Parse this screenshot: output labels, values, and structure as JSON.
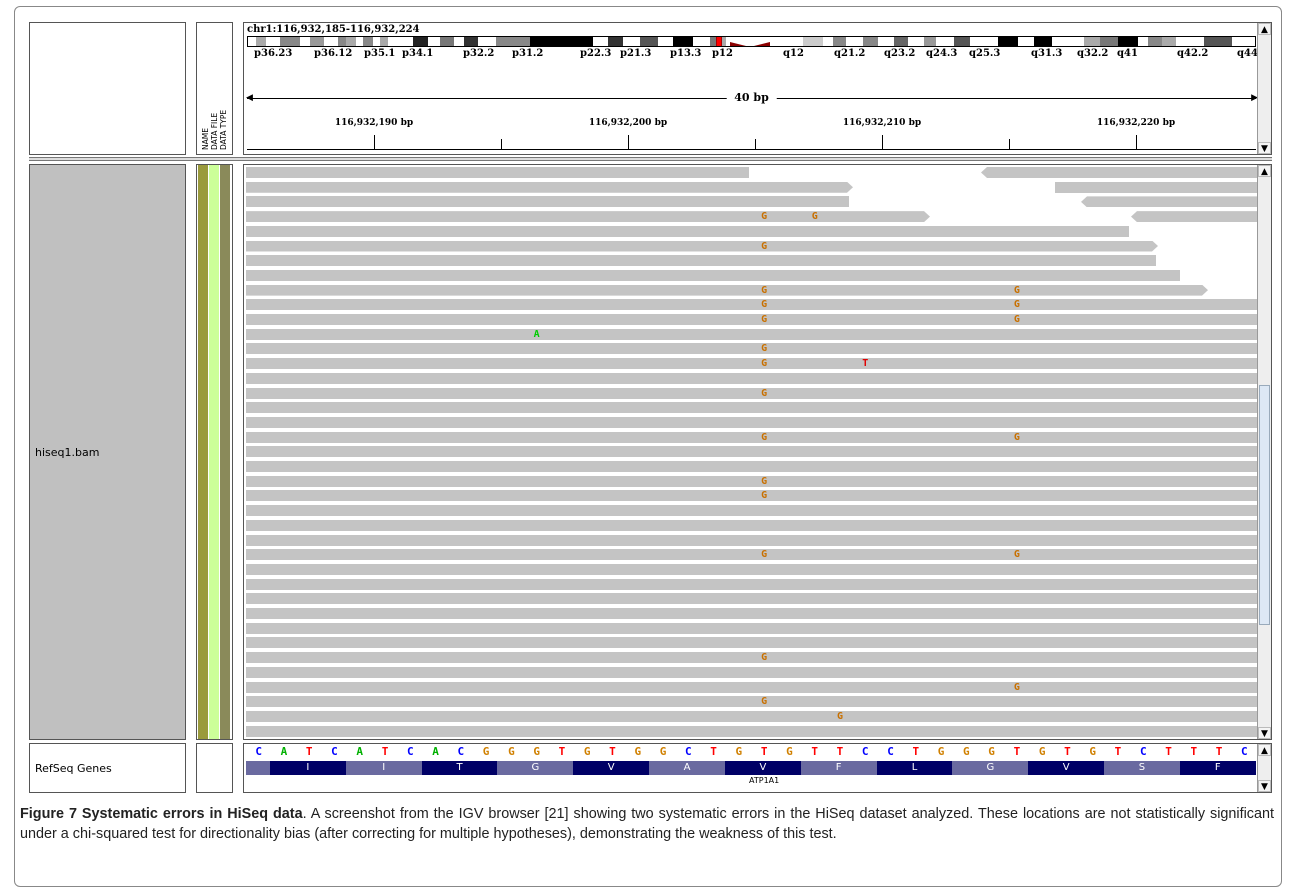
{
  "igv": {
    "locus": "chr1:116,932,185-116,932,224",
    "ideogram_bands": [
      "p36.23",
      "p36.12",
      "p35.1",
      "p34.1",
      "p32.2",
      "p31.2",
      "p22.3",
      "p21.3",
      "p13.3",
      "p12",
      "q12",
      "q21.2",
      "q23.2",
      "q24.3",
      "q25.3",
      "q31.3",
      "q32.2",
      "q41",
      "q42.2",
      "q44"
    ],
    "span_label": "40 bp",
    "ruler_ticks": [
      "116,932,190 bp",
      "116,932,200 bp",
      "116,932,210 bp",
      "116,932,220 bp"
    ],
    "attribute_headers": [
      "NAME",
      "DATA FILE",
      "DATA TYPE"
    ],
    "track_name": "hiseq1.bam",
    "refseq_track_name": "RefSeq Genes",
    "reference_sequence": [
      "C",
      "A",
      "T",
      "C",
      "A",
      "T",
      "C",
      "A",
      "C",
      "G",
      "G",
      "G",
      "T",
      "G",
      "T",
      "G",
      "G",
      "C",
      "T",
      "G",
      "T",
      "G",
      "T",
      "T",
      "C",
      "C",
      "T",
      "G",
      "G",
      "G",
      "T",
      "G",
      "T",
      "G",
      "T",
      "C",
      "T",
      "T",
      "T",
      "C"
    ],
    "base_colors": {
      "A": "#00b000",
      "C": "#0000ff",
      "G": "#d08000",
      "T": "#ff0000"
    },
    "amino_acids": [
      "I",
      "I",
      "T",
      "G",
      "V",
      "A",
      "V",
      "F",
      "L",
      "G",
      "V",
      "S",
      "F"
    ],
    "gene_name": "ATP1A1",
    "mismatch_colors": {
      "G": "#c87000",
      "A": "#00cc00",
      "T": "#e00000"
    },
    "mismatches": [
      {
        "row": 3,
        "pos": 20,
        "base": "G"
      },
      {
        "row": 3,
        "pos": 22,
        "base": "G"
      },
      {
        "row": 5,
        "pos": 20,
        "base": "G"
      },
      {
        "row": 8,
        "pos": 20,
        "base": "G"
      },
      {
        "row": 8,
        "pos": 30,
        "base": "G"
      },
      {
        "row": 9,
        "pos": 20,
        "base": "G"
      },
      {
        "row": 9,
        "pos": 30,
        "base": "G"
      },
      {
        "row": 10,
        "pos": 20,
        "base": "G"
      },
      {
        "row": 10,
        "pos": 30,
        "base": "G"
      },
      {
        "row": 11,
        "pos": 11,
        "base": "A"
      },
      {
        "row": 12,
        "pos": 20,
        "base": "G"
      },
      {
        "row": 13,
        "pos": 20,
        "base": "G"
      },
      {
        "row": 13,
        "pos": 24,
        "base": "T"
      },
      {
        "row": 15,
        "pos": 20,
        "base": "G"
      },
      {
        "row": 18,
        "pos": 20,
        "base": "G"
      },
      {
        "row": 18,
        "pos": 30,
        "base": "G"
      },
      {
        "row": 21,
        "pos": 20,
        "base": "G"
      },
      {
        "row": 22,
        "pos": 20,
        "base": "G"
      },
      {
        "row": 26,
        "pos": 20,
        "base": "G"
      },
      {
        "row": 26,
        "pos": 30,
        "base": "G"
      },
      {
        "row": 33,
        "pos": 20,
        "base": "G"
      },
      {
        "row": 35,
        "pos": 30,
        "base": "G"
      },
      {
        "row": 36,
        "pos": 20,
        "base": "G"
      },
      {
        "row": 37,
        "pos": 23,
        "base": "G"
      }
    ]
  },
  "caption": {
    "title": "Figure 7 Systematic errors in HiSeq data",
    "text": ". A screenshot from the IGV browser [21] showing two systematic errors in the HiSeq dataset analyzed. These locations are not statistically significant under a chi-squared test for directionality bias (after correcting for multiple hypotheses), demonstrating the weakness of this test."
  }
}
